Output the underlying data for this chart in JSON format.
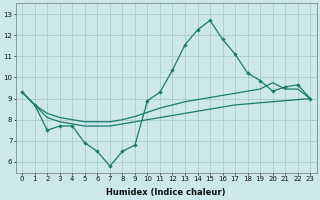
{
  "background_color": "#cce8e8",
  "grid_color": "#aacccc",
  "line_color": "#1a7a6e",
  "xlabel": "Humidex (Indice chaleur)",
  "xlim": [
    -0.5,
    23.5
  ],
  "ylim": [
    5.5,
    13.5
  ],
  "yticks": [
    6,
    7,
    8,
    9,
    10,
    11,
    12,
    13
  ],
  "xticks": [
    0,
    1,
    2,
    3,
    4,
    5,
    6,
    7,
    8,
    9,
    10,
    11,
    12,
    13,
    14,
    15,
    16,
    17,
    18,
    19,
    20,
    21,
    22,
    23
  ],
  "spike_x": [
    0,
    1,
    2,
    3,
    4,
    5,
    6,
    7,
    8,
    9,
    10,
    11,
    12,
    13,
    14,
    15,
    16,
    17,
    18,
    19,
    20,
    21,
    22,
    23
  ],
  "spike_y": [
    9.3,
    8.7,
    7.5,
    7.7,
    7.7,
    6.9,
    6.5,
    5.8,
    6.5,
    6.8,
    8.9,
    9.3,
    10.35,
    11.55,
    12.25,
    12.7,
    11.8,
    11.1,
    10.2,
    9.85,
    9.35,
    9.55,
    9.65,
    9.0
  ],
  "upper_x": [
    0,
    1,
    2,
    3,
    4,
    5,
    6,
    7,
    8,
    9,
    10,
    11,
    12,
    13,
    14,
    15,
    16,
    17,
    18,
    19,
    20,
    21,
    22,
    23
  ],
  "upper_y": [
    9.3,
    8.7,
    8.3,
    8.1,
    8.0,
    7.9,
    7.9,
    7.9,
    8.0,
    8.15,
    8.35,
    8.55,
    8.7,
    8.85,
    8.95,
    9.05,
    9.15,
    9.25,
    9.35,
    9.45,
    9.75,
    9.45,
    9.45,
    9.0
  ],
  "lower_x": [
    0,
    1,
    2,
    3,
    4,
    5,
    6,
    7,
    8,
    9,
    10,
    11,
    12,
    13,
    14,
    15,
    16,
    17,
    18,
    19,
    20,
    21,
    22,
    23
  ],
  "lower_y": [
    9.3,
    8.7,
    8.1,
    7.9,
    7.8,
    7.7,
    7.7,
    7.7,
    7.8,
    7.9,
    8.0,
    8.1,
    8.2,
    8.3,
    8.4,
    8.5,
    8.6,
    8.7,
    8.75,
    8.8,
    8.85,
    8.9,
    8.95,
    9.0
  ]
}
